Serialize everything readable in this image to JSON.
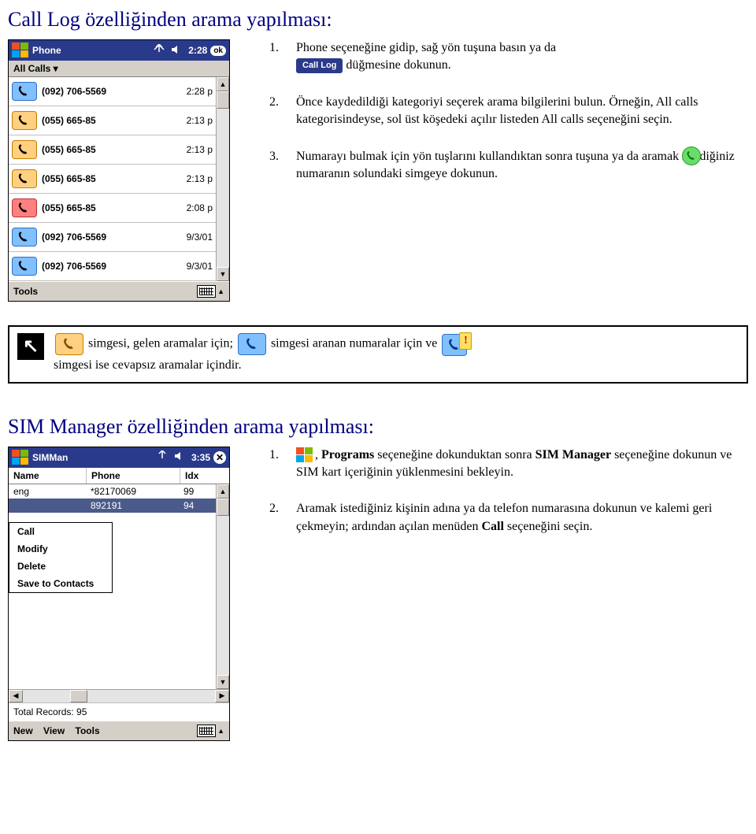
{
  "section1": {
    "heading": "Call Log özelliğinden arama yapılması:",
    "step1a": "Phone seçeneğine gidip, sağ yön tuşuna basın ya da",
    "call_log_label": "Call Log",
    "step1b": "düğmesine dokunun.",
    "step2": "Önce kaydedildiği kategoriyi seçerek arama bilgilerini bulun. Örneğin, All calls kategorisindeyse, sol üst köşedeki açılır listeden All calls seçeneğini seçin.",
    "step3": "Numarayı bulmak için yön tuşlarını kullandıktan sonra          tuşuna ya da aramak istediğiniz numaranın solundaki simgeye dokunun."
  },
  "phone_shot": {
    "title": "Phone",
    "time": "2:28",
    "ok": "ok",
    "all_calls": "All Calls ▾",
    "tools": "Tools",
    "rows": [
      {
        "type": "out",
        "num": "(092) 706-5569",
        "t": "2:28 p"
      },
      {
        "type": "in",
        "num": "(055) 665-85",
        "t": "2:13 p"
      },
      {
        "type": "in",
        "num": "(055) 665-85",
        "t": "2:13 p"
      },
      {
        "type": "in",
        "num": "(055) 665-85",
        "t": "2:13 p"
      },
      {
        "type": "missed",
        "num": "(055) 665-85",
        "t": "2:08 p"
      },
      {
        "type": "out",
        "num": "(092) 706-5569",
        "t": "9/3/01"
      },
      {
        "type": "out",
        "num": "(092) 706-5569",
        "t": "9/3/01"
      }
    ]
  },
  "notebox": {
    "icon": "↖",
    "t1": "simgesi, gelen aramalar için;",
    "t2": "simgesi aranan numaralar için ve",
    "t3": "simgesi ise cevapsız aramalar içindir."
  },
  "section2": {
    "heading": "SIM Manager özelliğinden arama yapılması:",
    "step1a": ",",
    "step1b": "Programs",
    "step1c": " seçeneğine dokunduktan sonra ",
    "step1d": "SIM Manager",
    "step1e": " seçeneğine dokunun ve SIM kart içeriğinin yüklenmesini bekleyin.",
    "step2a": "Aramak istediğiniz kişinin adına ya da telefon numarasına dokunun ve kalemi geri çekmeyin; ardından açılan menüden ",
    "step2b": "Call",
    "step2c": " seçeneğini seçin."
  },
  "sim_shot": {
    "title": "SIMMan",
    "time": "3:35",
    "cols": {
      "name": "Name",
      "phone": "Phone",
      "idx": "Idx"
    },
    "rows": [
      {
        "name": "eng",
        "phone": "*82170069",
        "idx": "99"
      },
      {
        "name": "",
        "phone": "892191",
        "idx": "94"
      }
    ],
    "menu": {
      "call": "Call",
      "modify": "Modify",
      "delete": "Delete",
      "save": "Save to Contacts"
    },
    "total": "Total Records: 95",
    "bottom": {
      "new": "New",
      "view": "View",
      "tools": "Tools"
    }
  },
  "colors": {
    "heading": "#000080",
    "titlebar": "#2a3a8a",
    "win_bg": "#d4d0c8"
  }
}
